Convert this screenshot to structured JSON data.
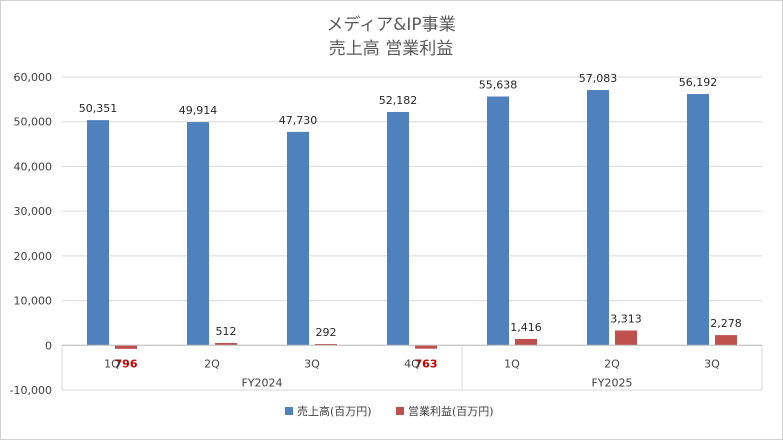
{
  "chart_data": {
    "type": "bar",
    "title": [
      "メディア&IP事業",
      "売上高 営業利益"
    ],
    "categories": [
      "1Q",
      "2Q",
      "3Q",
      "4Q",
      "1Q",
      "2Q",
      "3Q"
    ],
    "groups": [
      {
        "label": "FY2024",
        "count": 4
      },
      {
        "label": "FY2025",
        "count": 3
      }
    ],
    "series": [
      {
        "name": "売上高(百万円)",
        "color": "#4f81bd",
        "values": [
          50351,
          49914,
          47730,
          52182,
          55638,
          57083,
          56192
        ]
      },
      {
        "name": "営業利益(百万円)",
        "color": "#c0504d",
        "values": [
          -796,
          512,
          292,
          -763,
          1416,
          3313,
          2278
        ]
      }
    ],
    "data_labels": {
      "sales": [
        "50,351",
        "49,914",
        "47,730",
        "52,182",
        "55,638",
        "57,083",
        "56,192"
      ],
      "profit": [
        "796",
        "512",
        "292",
        "763",
        "1,416",
        "3,313",
        "2,278"
      ]
    },
    "ylim": [
      -10000,
      60000
    ],
    "yticks": [
      {
        "v": 60000,
        "label": "60,000"
      },
      {
        "v": 50000,
        "label": "50,000"
      },
      {
        "v": 40000,
        "label": "40,000"
      },
      {
        "v": 30000,
        "label": "30,000"
      },
      {
        "v": 20000,
        "label": "20,000"
      },
      {
        "v": 10000,
        "label": "10,000"
      },
      {
        "v": 0,
        "label": "0"
      },
      {
        "v": -10000,
        "label": "-10,000"
      }
    ],
    "negative_tick_color": "#c00000",
    "negative_label_color": "#c00000",
    "grid": true,
    "legend_position": "bottom"
  }
}
